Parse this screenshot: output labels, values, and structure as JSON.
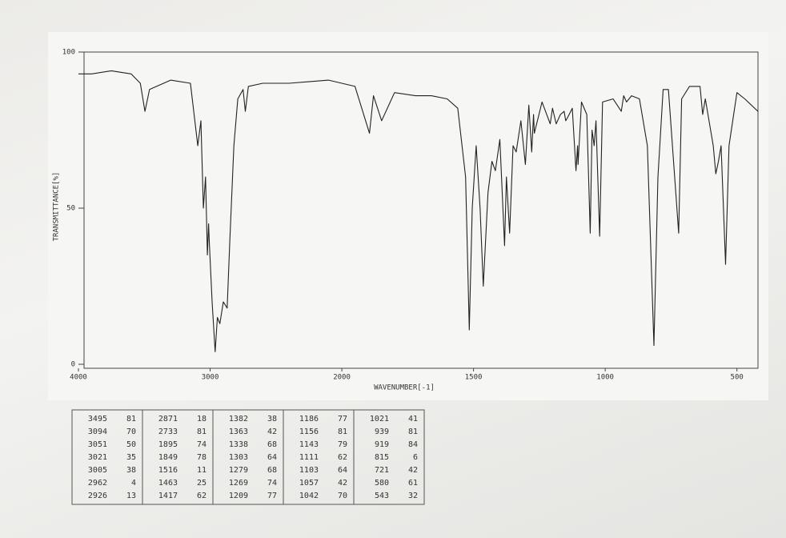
{
  "chart_data": {
    "type": "line",
    "y_label": "TRANSMITTANCE[%]",
    "x_label": "WAVENUMBER[-1]",
    "xlim": [
      4000,
      420
    ],
    "ylim": [
      0,
      100
    ],
    "scale_break": 2000,
    "xticks": [
      4000,
      3000,
      2000,
      1500,
      1000,
      500
    ],
    "yticks": [
      0,
      50,
      100
    ],
    "color": "#222222",
    "x": [
      4000,
      3900,
      3750,
      3600,
      3530,
      3495,
      3460,
      3300,
      3150,
      3094,
      3070,
      3051,
      3035,
      3021,
      3012,
      3005,
      2985,
      2962,
      2945,
      2926,
      2900,
      2871,
      2850,
      2820,
      2790,
      2750,
      2733,
      2710,
      2600,
      2400,
      2100,
      1950,
      1895,
      1880,
      1849,
      1800,
      1720,
      1660,
      1600,
      1560,
      1530,
      1516,
      1505,
      1490,
      1475,
      1463,
      1445,
      1430,
      1417,
      1400,
      1382,
      1375,
      1363,
      1350,
      1338,
      1320,
      1303,
      1290,
      1279,
      1272,
      1269,
      1240,
      1209,
      1200,
      1186,
      1170,
      1156,
      1150,
      1143,
      1125,
      1111,
      1105,
      1103,
      1090,
      1070,
      1057,
      1050,
      1042,
      1035,
      1021,
      1010,
      970,
      939,
      930,
      919,
      900,
      870,
      840,
      815,
      800,
      780,
      760,
      721,
      710,
      680,
      640,
      630,
      620,
      590,
      580,
      570,
      560,
      543,
      530,
      500,
      470,
      420
    ],
    "values": [
      93,
      93,
      94,
      93,
      90,
      81,
      88,
      91,
      90,
      70,
      78,
      50,
      60,
      35,
      45,
      38,
      20,
      4,
      15,
      13,
      20,
      18,
      40,
      70,
      85,
      88,
      81,
      89,
      90,
      90,
      91,
      89,
      74,
      86,
      78,
      87,
      86,
      86,
      85,
      82,
      60,
      11,
      50,
      70,
      50,
      25,
      55,
      65,
      62,
      72,
      38,
      60,
      42,
      70,
      68,
      78,
      64,
      83,
      68,
      80,
      74,
      84,
      77,
      82,
      77,
      80,
      81,
      78,
      79,
      82,
      62,
      70,
      64,
      84,
      80,
      42,
      75,
      70,
      78,
      41,
      84,
      85,
      81,
      86,
      84,
      86,
      85,
      70,
      6,
      60,
      88,
      88,
      42,
      85,
      89,
      89,
      80,
      85,
      70,
      61,
      65,
      70,
      32,
      70,
      87,
      85,
      81
    ]
  },
  "peak_table": [
    [
      [
        3495,
        81
      ],
      [
        3094,
        70
      ],
      [
        3051,
        50
      ],
      [
        3021,
        35
      ],
      [
        3005,
        38
      ],
      [
        2962,
        4
      ],
      [
        2926,
        13
      ]
    ],
    [
      [
        2871,
        18
      ],
      [
        2733,
        81
      ],
      [
        1895,
        74
      ],
      [
        1849,
        78
      ],
      [
        1516,
        11
      ],
      [
        1463,
        25
      ],
      [
        1417,
        62
      ]
    ],
    [
      [
        1382,
        38
      ],
      [
        1363,
        42
      ],
      [
        1338,
        68
      ],
      [
        1303,
        64
      ],
      [
        1279,
        68
      ],
      [
        1269,
        74
      ],
      [
        1209,
        77
      ]
    ],
    [
      [
        1186,
        77
      ],
      [
        1156,
        81
      ],
      [
        1143,
        79
      ],
      [
        1111,
        62
      ],
      [
        1103,
        64
      ],
      [
        1057,
        42
      ],
      [
        1042,
        70
      ]
    ],
    [
      [
        1021,
        41
      ],
      [
        939,
        81
      ],
      [
        919,
        84
      ],
      [
        815,
        6
      ],
      [
        721,
        42
      ],
      [
        580,
        61
      ],
      [
        543,
        32
      ]
    ]
  ]
}
